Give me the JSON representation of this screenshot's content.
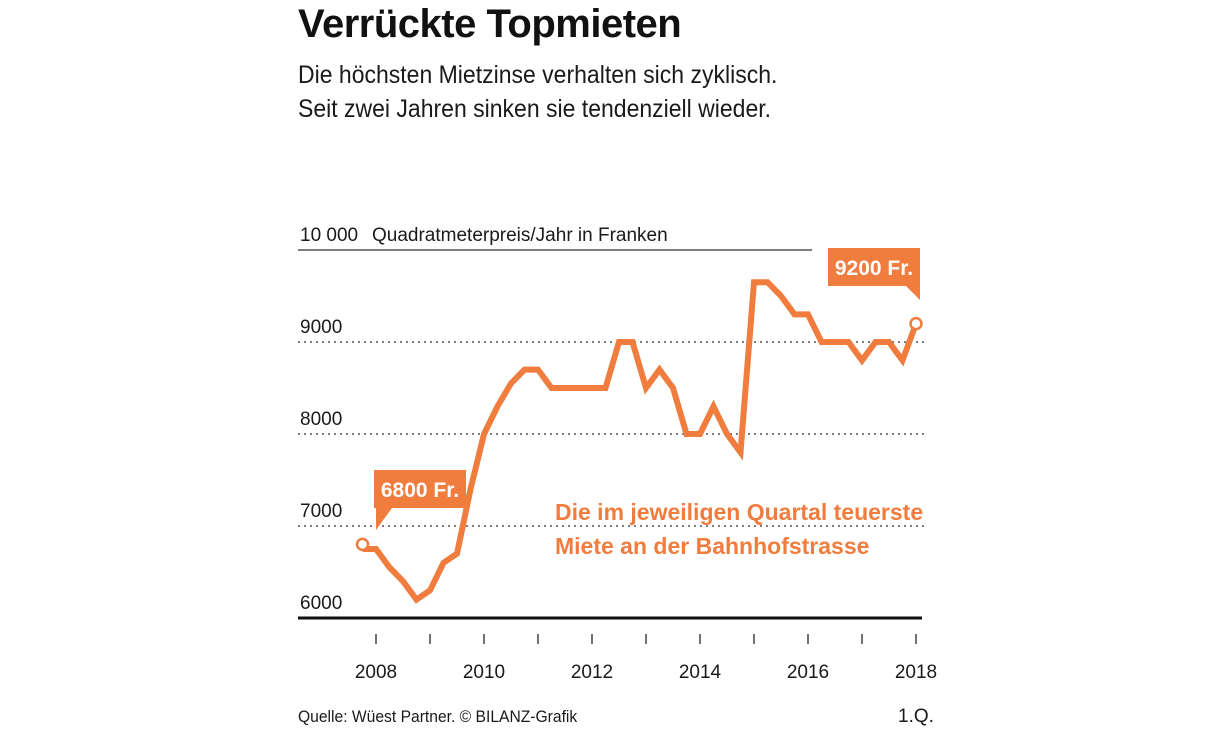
{
  "header": {
    "title": "Verrückte Topmieten",
    "subtitle_line1": "Die höchsten Mietzinse verhalten sich zyklisch.",
    "subtitle_line2": "Seit zwei Jahren sinken sie tendenziell wieder."
  },
  "footer": {
    "source": "Quelle: Wüest Partner. © BILANZ-Grafik"
  },
  "colors": {
    "line": "#f07c3e",
    "text": "#1a1a1a",
    "grid": "#555555"
  },
  "chart_data": {
    "type": "line",
    "ylabel": "Quadratmeterpreis/Jahr in Franken",
    "ylim": [
      6000,
      10000
    ],
    "yticks": [
      "6000",
      "7000",
      "8000",
      "9000",
      "10 000"
    ],
    "ytick_values": [
      6000,
      7000,
      8000,
      9000,
      10000
    ],
    "xticks": [
      "2008",
      "2010",
      "2012",
      "2014",
      "2016",
      "2018"
    ],
    "xtick_values": [
      2008,
      2010,
      2012,
      2014,
      2016,
      2018
    ],
    "xtick_sublabel": "1.Q.",
    "grid": "dotted horizontal at 7000, 8000, 9000",
    "annotation": [
      "Die im jeweiligen Quartal teuerste",
      "Miete an der Bahnhofstrasse"
    ],
    "callouts": [
      {
        "label": "6800 Fr.",
        "x": 2007.75,
        "y": 6800
      },
      {
        "label": "9200 Fr.",
        "x": 2018.0,
        "y": 9200
      }
    ],
    "series": [
      {
        "x": [
          2007.75,
          2008.0,
          2008.25,
          2008.5,
          2008.75,
          2009.0,
          2009.25,
          2009.5,
          2009.75,
          2010.0,
          2010.25,
          2010.5,
          2010.75,
          2011.0,
          2011.25,
          2011.5,
          2011.75,
          2012.0,
          2012.25,
          2012.5,
          2012.75,
          2013.0,
          2013.25,
          2013.5,
          2013.75,
          2014.0,
          2014.25,
          2014.5,
          2014.75,
          2015.0,
          2015.25,
          2015.5,
          2015.75,
          2016.0,
          2016.25,
          2016.5,
          2016.75,
          2017.0,
          2017.25,
          2017.5,
          2017.75,
          2018.0
        ],
        "values": [
          6750,
          6750,
          6550,
          6400,
          6200,
          6300,
          6600,
          6700,
          7400,
          8000,
          8300,
          8550,
          8700,
          8700,
          8500,
          8500,
          8500,
          8500,
          8500,
          9000,
          9000,
          8500,
          8700,
          8500,
          8000,
          8000,
          8300,
          8000,
          7800,
          9650,
          9650,
          9500,
          9300,
          9300,
          9000,
          9000,
          9000,
          8800,
          9000,
          9000,
          8800,
          9200
        ]
      }
    ]
  }
}
